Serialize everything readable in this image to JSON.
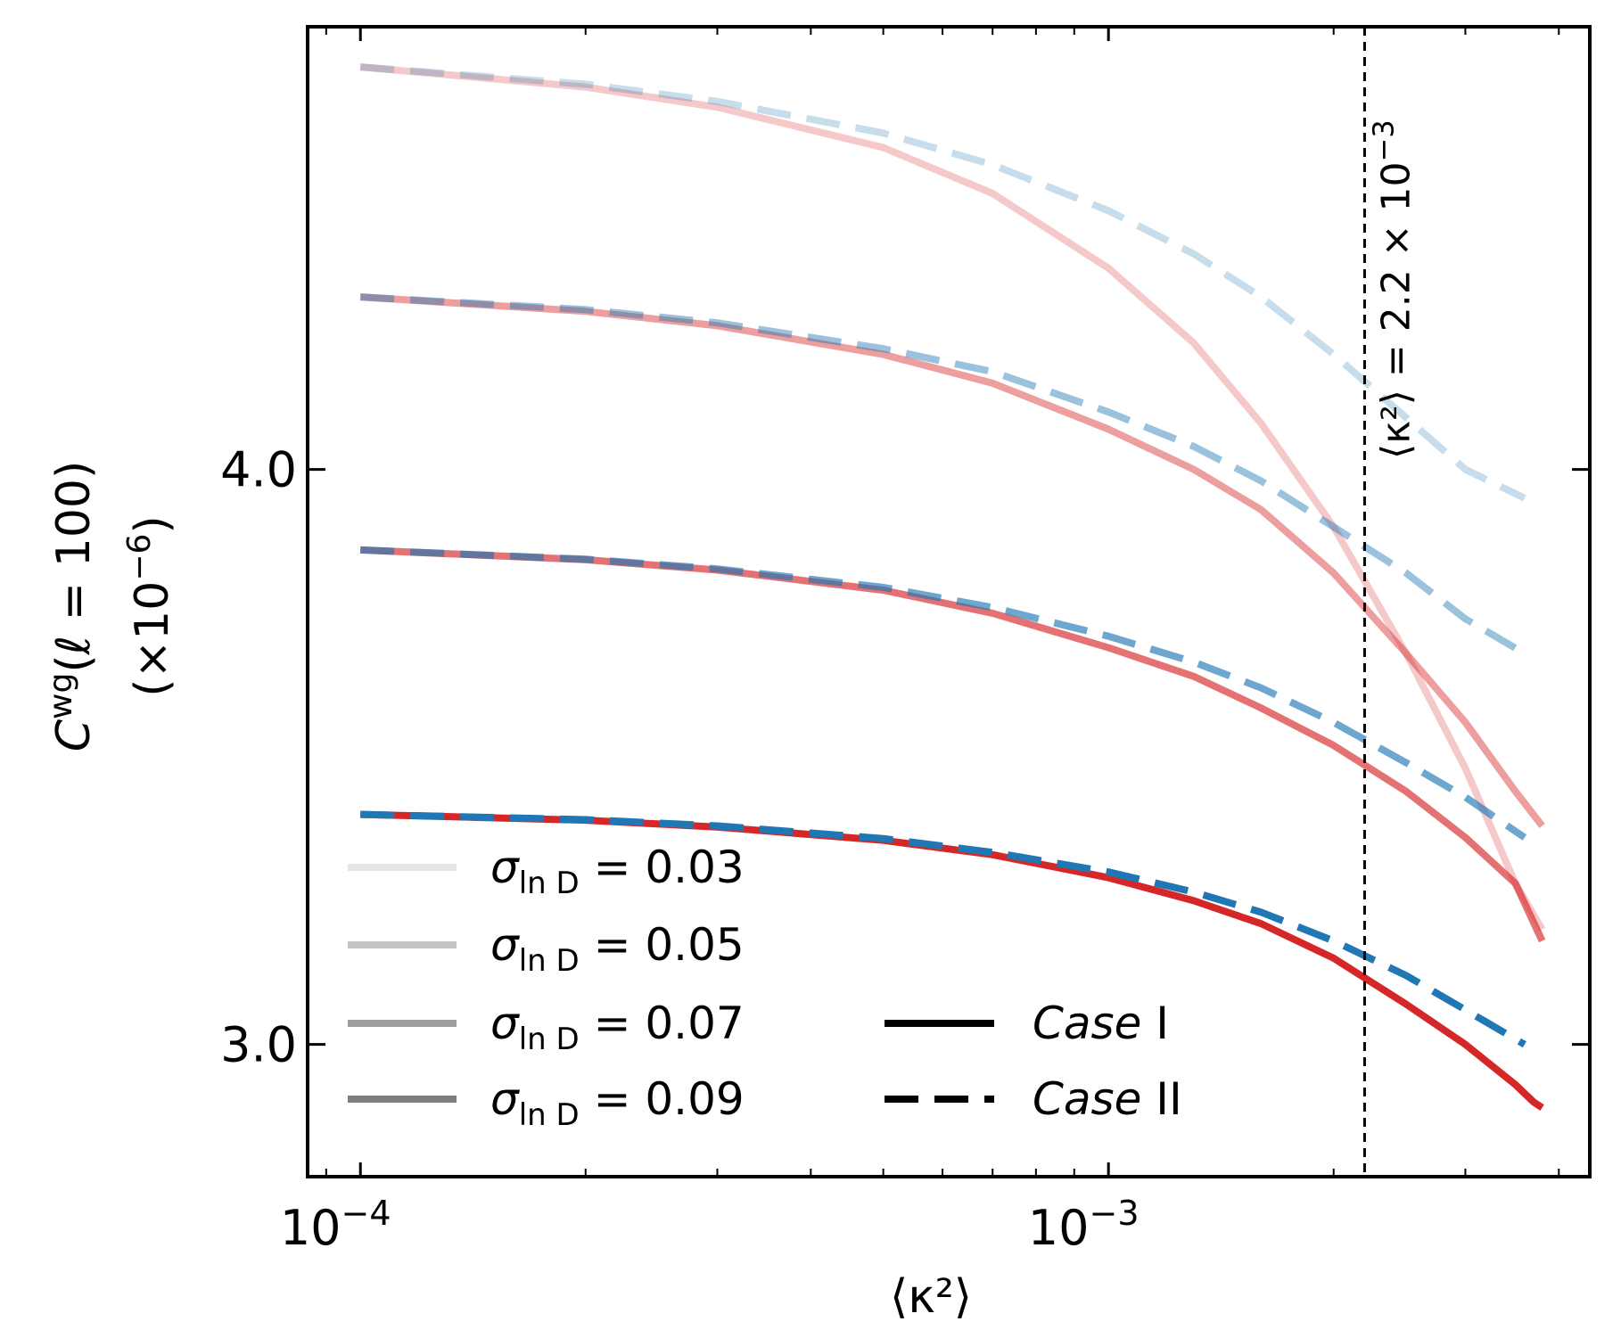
{
  "chart_data": {
    "type": "line",
    "xscale": "log",
    "xlabel": "⟨κ²⟩",
    "ylabel_line1": "C^wg(ℓ = 100)",
    "ylabel_line2": "(×10⁻⁶)",
    "ylabel_main": "C",
    "ylabel_sup": "wg",
    "ylabel_rest": "(ℓ = 100)",
    "ylabel_scale": "(×10",
    "ylabel_scale_exp": "−6",
    "ylabel_scale_end": ")",
    "xlim": [
      8.5e-05,
      0.0044
    ],
    "ylim": [
      2.77,
      4.77
    ],
    "x_ticks": [
      {
        "value": 0.0001,
        "base": "10",
        "exp": "−4"
      },
      {
        "value": 0.001,
        "base": "10",
        "exp": "−3"
      }
    ],
    "y_ticks": [
      {
        "value": 3.0,
        "label": "3.0"
      },
      {
        "value": 4.0,
        "label": "4.0"
      }
    ],
    "vline": {
      "x": 0.0022,
      "label": "⟨κ²⟩ = 2.2 × 10",
      "label_exp": "−3"
    },
    "series": [
      {
        "name": "σ_lnD = 0.03, Case I",
        "sigma": 0.03,
        "case": "I",
        "color": "#d62728",
        "opacity": 0.25,
        "x": [
          0.0001,
          0.0002,
          0.0003,
          0.0005,
          0.0007,
          0.001,
          0.0013,
          0.0016,
          0.002,
          0.0025,
          0.003,
          0.0035,
          0.0038
        ],
        "y": [
          4.7,
          4.665,
          4.63,
          4.56,
          4.48,
          4.35,
          4.22,
          4.08,
          3.9,
          3.68,
          3.48,
          3.28,
          3.2
        ]
      },
      {
        "name": "σ_lnD = 0.03, Case II",
        "sigma": 0.03,
        "case": "II",
        "color": "#1f77b4",
        "opacity": 0.25,
        "x": [
          0.0001,
          0.0002,
          0.0003,
          0.0005,
          0.0007,
          0.001,
          0.0013,
          0.0016,
          0.002,
          0.0025,
          0.003,
          0.0036
        ],
        "y": [
          4.7,
          4.67,
          4.64,
          4.585,
          4.53,
          4.45,
          4.375,
          4.3,
          4.2,
          4.09,
          4.0,
          3.95
        ]
      },
      {
        "name": "σ_lnD = 0.05, Case I",
        "sigma": 0.05,
        "case": "I",
        "color": "#d62728",
        "opacity": 0.45,
        "x": [
          0.0001,
          0.0002,
          0.0003,
          0.0005,
          0.0007,
          0.001,
          0.0013,
          0.0016,
          0.002,
          0.0025,
          0.003,
          0.0035,
          0.0038
        ],
        "y": [
          4.3,
          4.275,
          4.25,
          4.2,
          4.15,
          4.07,
          4.0,
          3.93,
          3.82,
          3.68,
          3.56,
          3.44,
          3.38
        ]
      },
      {
        "name": "σ_lnD = 0.05, Case II",
        "sigma": 0.05,
        "case": "II",
        "color": "#1f77b4",
        "opacity": 0.45,
        "x": [
          0.0001,
          0.0002,
          0.0003,
          0.0005,
          0.0007,
          0.001,
          0.0013,
          0.0016,
          0.002,
          0.0025,
          0.003,
          0.0036
        ],
        "y": [
          4.3,
          4.278,
          4.255,
          4.21,
          4.17,
          4.1,
          4.04,
          3.98,
          3.9,
          3.82,
          3.74,
          3.68
        ]
      },
      {
        "name": "σ_lnD = 0.07, Case I",
        "sigma": 0.07,
        "case": "I",
        "color": "#d62728",
        "opacity": 0.65,
        "x": [
          0.0001,
          0.0002,
          0.0003,
          0.0005,
          0.0007,
          0.001,
          0.0013,
          0.0016,
          0.002,
          0.0025,
          0.003,
          0.0035,
          0.0038
        ],
        "y": [
          3.86,
          3.843,
          3.825,
          3.79,
          3.75,
          3.69,
          3.64,
          3.585,
          3.52,
          3.44,
          3.36,
          3.28,
          3.18
        ]
      },
      {
        "name": "σ_lnD = 0.07, Case II",
        "sigma": 0.07,
        "case": "II",
        "color": "#1f77b4",
        "opacity": 0.65,
        "x": [
          0.0001,
          0.0002,
          0.0003,
          0.0005,
          0.0007,
          0.001,
          0.0013,
          0.0016,
          0.002,
          0.0025,
          0.003,
          0.0036
        ],
        "y": [
          3.86,
          3.844,
          3.827,
          3.795,
          3.76,
          3.71,
          3.665,
          3.62,
          3.56,
          3.49,
          3.43,
          3.36
        ]
      },
      {
        "name": "σ_lnD = 0.09, Case I",
        "sigma": 0.09,
        "case": "I",
        "color": "#d62728",
        "opacity": 1.0,
        "x": [
          0.0001,
          0.0002,
          0.0003,
          0.0005,
          0.0007,
          0.001,
          0.0013,
          0.0016,
          0.002,
          0.0025,
          0.003,
          0.0035,
          0.0037,
          0.0038
        ],
        "y": [
          3.4,
          3.39,
          3.378,
          3.355,
          3.33,
          3.29,
          3.25,
          3.21,
          3.15,
          3.07,
          3.0,
          2.93,
          2.9,
          2.89
        ]
      },
      {
        "name": "σ_lnD = 0.09, Case II",
        "sigma": 0.09,
        "case": "II",
        "color": "#1f77b4",
        "opacity": 1.0,
        "x": [
          0.0001,
          0.0002,
          0.0003,
          0.0005,
          0.0007,
          0.001,
          0.0013,
          0.0016,
          0.002,
          0.0025,
          0.003,
          0.0036
        ],
        "y": [
          3.4,
          3.391,
          3.38,
          3.358,
          3.334,
          3.3,
          3.265,
          3.23,
          3.18,
          3.12,
          3.06,
          3.0
        ]
      }
    ],
    "legend": {
      "placement": "lower-left",
      "sigma_entries": [
        {
          "sym": "σ",
          "sub": "ln D",
          "rest": " = 0.03",
          "color": "#e6e6e6"
        },
        {
          "sym": "σ",
          "sub": "ln D",
          "rest": " = 0.05",
          "color": "#c4c4c4"
        },
        {
          "sym": "σ",
          "sub": "ln D",
          "rest": " = 0.07",
          "color": "#9e9e9e"
        },
        {
          "sym": "σ",
          "sub": "ln D",
          "rest": " = 0.09",
          "color": "#7f7f7f"
        }
      ],
      "case_entries": [
        {
          "label": "Case",
          "suffix": " I",
          "style": "solid",
          "color": "#000000"
        },
        {
          "label": "Case",
          "suffix": " II",
          "style": "dashed",
          "color": "#000000"
        }
      ]
    }
  }
}
